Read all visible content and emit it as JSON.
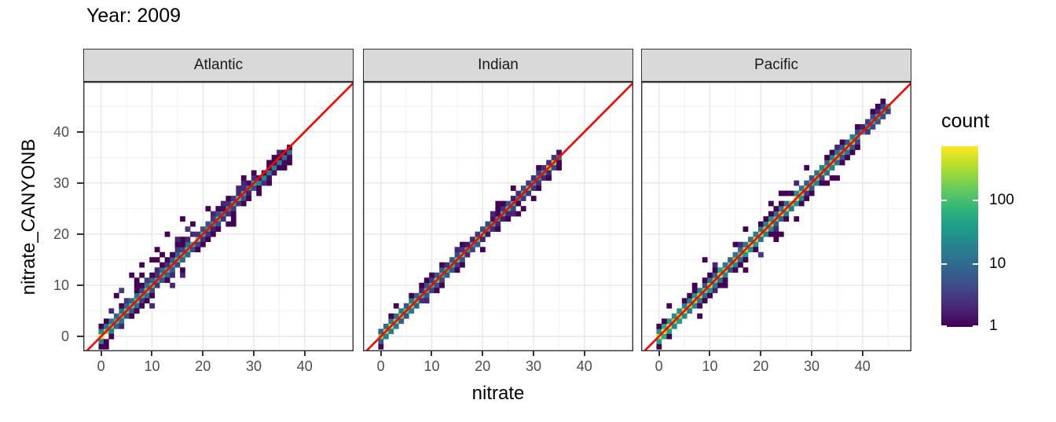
{
  "title": "Year: 2009",
  "axes": {
    "x_label": "nitrate",
    "y_label": "nitrate_CANYONB"
  },
  "legend": {
    "title": "count",
    "tick_values": [
      100,
      10,
      1
    ],
    "min_count": 1,
    "max_count": 700
  },
  "colors": {
    "identity_line": "#FF0000",
    "strip_fill": "#D9D9D9",
    "panel_border": "#333333",
    "axis_text": "#4D4D4D",
    "grid_major": "#E7E7E7",
    "grid_minor": "#F1F1F1",
    "viridis": [
      "#440154",
      "#482878",
      "#3E4A89",
      "#31688E",
      "#26828E",
      "#1F9E89",
      "#35B779",
      "#6ECE58",
      "#B5DE2B",
      "#FDE725"
    ]
  },
  "chart_data": {
    "type": "heatmap",
    "subtype": "bin2d-facets",
    "title": "Year: 2009",
    "xlabel": "nitrate",
    "ylabel": "nitrate_CANYONB",
    "x_domain": [
      -3.5,
      49.6
    ],
    "y_domain": [
      -2.9,
      49.8
    ],
    "x_ticks": [
      0,
      10,
      20,
      30,
      40
    ],
    "y_ticks": [
      0,
      10,
      20,
      30,
      40
    ],
    "minor_ticks": [
      5,
      15,
      25,
      35,
      45
    ],
    "bin_size": 1,
    "identity_line": {
      "slope": 1,
      "intercept": 0
    },
    "count_scale": "log10",
    "panels": [
      {
        "name": "Atlantic",
        "seed": 3,
        "diag_max": 37,
        "amp": 160,
        "decay": 10,
        "neighbor_div": 14,
        "fringe": 0.55,
        "tail": {
          "from": 31,
          "scale": 0.3
        },
        "end_bias": {
          "from": 31,
          "shift": -0.8
        },
        "hot_spots": [
          [
            0,
            200
          ],
          [
            1,
            90
          ],
          [
            19,
            90
          ],
          [
            27,
            70
          ]
        ],
        "scatter": {
          "n": 42,
          "vmin": 1,
          "vmax": 19,
          "spread": 3.2,
          "above_frac": 0.75
        },
        "extras": [
          [
            16,
            23
          ],
          [
            13,
            20
          ],
          [
            11,
            17
          ],
          [
            15,
            19
          ],
          [
            10,
            15
          ],
          [
            6,
            12
          ],
          [
            8,
            14
          ],
          [
            3,
            8
          ],
          [
            4,
            9
          ],
          [
            26,
            22
          ],
          [
            25,
            22
          ],
          [
            26,
            23
          ],
          [
            21,
            25
          ],
          [
            27,
            29
          ],
          [
            28,
            31
          ],
          [
            14,
            10
          ],
          [
            16,
            12
          ]
        ]
      },
      {
        "name": "Indian",
        "seed": 8,
        "diag_max": 35,
        "amp": 250,
        "decay": 6,
        "neighbor_div": 20,
        "fringe": 0.25,
        "tail": null,
        "end_bias": {
          "from": 32,
          "shift": -0.3
        },
        "hot_spots": [
          [
            33,
            220
          ],
          [
            34,
            150
          ],
          [
            29,
            100
          ],
          [
            20,
            60
          ]
        ],
        "scatter": {
          "n": 10,
          "vmin": 1,
          "vmax": 30,
          "spread": 1.8,
          "above_frac": 0.5
        },
        "extras": [
          [
            28,
            25
          ],
          [
            27,
            24
          ],
          [
            24,
            26
          ],
          [
            3,
            6
          ],
          [
            9,
            7
          ],
          [
            2,
            4
          ],
          [
            25,
            23
          ]
        ]
      },
      {
        "name": "Pacific",
        "seed": 5,
        "diag_max": 45,
        "amp": 420,
        "decay": 16,
        "neighbor_div": 16,
        "fringe": 0.4,
        "tail": {
          "from": 39,
          "scale": 0.4
        },
        "end_bias": {
          "from": 42,
          "shift": -0.5
        },
        "hot_spots": [
          [
            25,
            150
          ],
          [
            27,
            220
          ],
          [
            29,
            160
          ],
          [
            24,
            120
          ],
          [
            0,
            180
          ]
        ],
        "scatter": {
          "n": 28,
          "vmin": 1,
          "vmax": 36,
          "spread": 2.6,
          "above_frac": 0.5
        },
        "extras": [
          [
            9,
            15
          ],
          [
            20,
            16
          ],
          [
            13,
            10
          ],
          [
            34,
            31
          ],
          [
            33,
            30
          ],
          [
            36,
            38
          ],
          [
            35,
            37
          ],
          [
            17,
            21
          ],
          [
            23,
            19
          ],
          [
            27,
            23
          ]
        ]
      }
    ]
  }
}
